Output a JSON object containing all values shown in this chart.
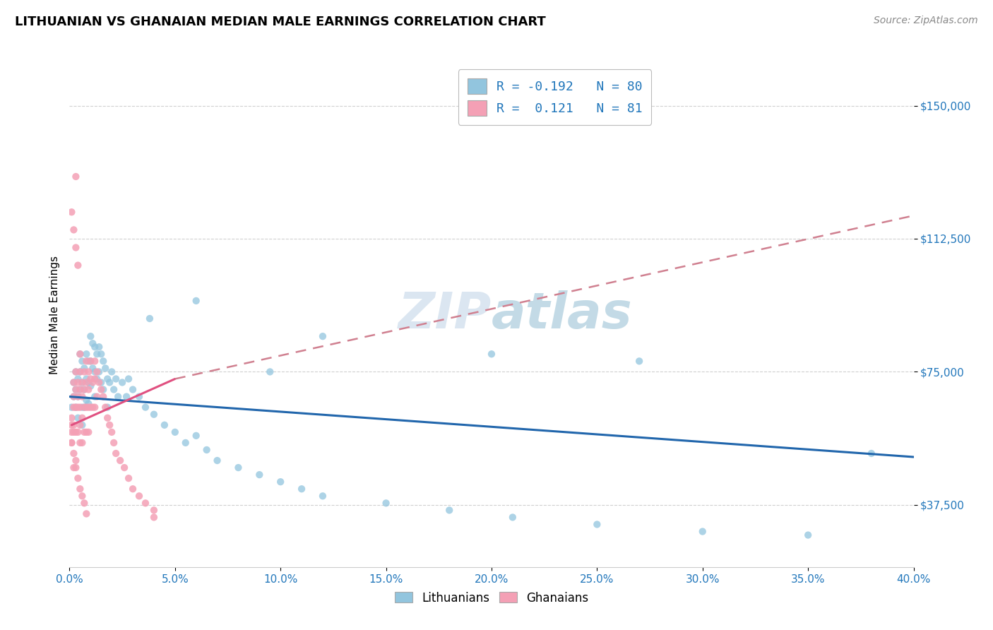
{
  "title": "LITHUANIAN VS GHANAIAN MEDIAN MALE EARNINGS CORRELATION CHART",
  "source": "Source: ZipAtlas.com",
  "ylabel": "Median Male Earnings",
  "yticks": [
    37500,
    75000,
    112500,
    150000
  ],
  "ytick_labels": [
    "$37,500",
    "$75,000",
    "$112,500",
    "$150,000"
  ],
  "xlim": [
    0.0,
    0.4
  ],
  "ylim": [
    20000,
    162000
  ],
  "watermark": "ZIPatlas",
  "color_blue": "#92c5de",
  "color_pink": "#f4a0b5",
  "trend_blue": "#2166ac",
  "trend_pink_solid": "#e05080",
  "trend_pink_dash": "#d08090",
  "background": "#ffffff",
  "grid_color": "#d0d0d0",
  "lith_trend_x0": 0.0,
  "lith_trend_y0": 68000,
  "lith_trend_x1": 0.4,
  "lith_trend_y1": 51000,
  "ghan_trend_solid_x0": 0.001,
  "ghan_trend_solid_y0": 60000,
  "ghan_trend_solid_x1": 0.05,
  "ghan_trend_solid_y1": 73000,
  "ghan_trend_dash_x0": 0.05,
  "ghan_trend_dash_y0": 73000,
  "ghan_trend_dash_x1": 0.4,
  "ghan_trend_dash_y1": 119000,
  "lithuanians_x": [
    0.001,
    0.002,
    0.002,
    0.003,
    0.003,
    0.003,
    0.004,
    0.004,
    0.004,
    0.005,
    0.005,
    0.005,
    0.006,
    0.006,
    0.006,
    0.006,
    0.007,
    0.007,
    0.007,
    0.008,
    0.008,
    0.008,
    0.009,
    0.009,
    0.009,
    0.01,
    0.01,
    0.01,
    0.011,
    0.011,
    0.012,
    0.012,
    0.012,
    0.013,
    0.013,
    0.014,
    0.014,
    0.015,
    0.015,
    0.016,
    0.016,
    0.017,
    0.018,
    0.018,
    0.019,
    0.02,
    0.021,
    0.022,
    0.023,
    0.025,
    0.027,
    0.028,
    0.03,
    0.033,
    0.036,
    0.04,
    0.045,
    0.05,
    0.055,
    0.06,
    0.065,
    0.07,
    0.08,
    0.09,
    0.1,
    0.11,
    0.12,
    0.15,
    0.18,
    0.21,
    0.25,
    0.3,
    0.35,
    0.038,
    0.12,
    0.2,
    0.27,
    0.38,
    0.06,
    0.095
  ],
  "lithuanians_y": [
    65000,
    72000,
    68000,
    75000,
    70000,
    65000,
    73000,
    68000,
    62000,
    80000,
    75000,
    70000,
    78000,
    72000,
    65000,
    60000,
    76000,
    70000,
    65000,
    80000,
    73000,
    67000,
    78000,
    72000,
    66000,
    85000,
    78000,
    71000,
    83000,
    76000,
    82000,
    75000,
    68000,
    80000,
    73000,
    82000,
    75000,
    80000,
    72000,
    78000,
    70000,
    76000,
    73000,
    65000,
    72000,
    75000,
    70000,
    73000,
    68000,
    72000,
    68000,
    73000,
    70000,
    68000,
    65000,
    63000,
    60000,
    58000,
    55000,
    57000,
    53000,
    50000,
    48000,
    46000,
    44000,
    42000,
    40000,
    38000,
    36000,
    34000,
    32000,
    30000,
    29000,
    90000,
    85000,
    80000,
    78000,
    52000,
    95000,
    75000
  ],
  "ghanaians_x": [
    0.001,
    0.001,
    0.001,
    0.002,
    0.002,
    0.002,
    0.002,
    0.003,
    0.003,
    0.003,
    0.003,
    0.003,
    0.004,
    0.004,
    0.004,
    0.004,
    0.005,
    0.005,
    0.005,
    0.005,
    0.005,
    0.005,
    0.006,
    0.006,
    0.006,
    0.006,
    0.007,
    0.007,
    0.007,
    0.007,
    0.008,
    0.008,
    0.008,
    0.008,
    0.009,
    0.009,
    0.009,
    0.009,
    0.01,
    0.01,
    0.01,
    0.011,
    0.011,
    0.012,
    0.012,
    0.012,
    0.013,
    0.013,
    0.014,
    0.015,
    0.016,
    0.017,
    0.018,
    0.019,
    0.02,
    0.021,
    0.022,
    0.024,
    0.026,
    0.028,
    0.03,
    0.033,
    0.036,
    0.04,
    0.001,
    0.002,
    0.003,
    0.004,
    0.003,
    0.004,
    0.005,
    0.006,
    0.007,
    0.008,
    0.002,
    0.003,
    0.002,
    0.001,
    0.002,
    0.001,
    0.04
  ],
  "ghanaians_y": [
    58000,
    62000,
    55000,
    68000,
    72000,
    65000,
    60000,
    75000,
    70000,
    65000,
    58000,
    130000,
    68000,
    72000,
    65000,
    58000,
    80000,
    75000,
    70000,
    65000,
    60000,
    55000,
    72000,
    68000,
    62000,
    55000,
    75000,
    70000,
    65000,
    58000,
    78000,
    72000,
    65000,
    58000,
    75000,
    70000,
    65000,
    58000,
    78000,
    73000,
    65000,
    72000,
    65000,
    78000,
    73000,
    65000,
    75000,
    68000,
    72000,
    70000,
    68000,
    65000,
    62000,
    60000,
    58000,
    55000,
    52000,
    50000,
    48000,
    45000,
    42000,
    40000,
    38000,
    36000,
    120000,
    115000,
    110000,
    105000,
    48000,
    45000,
    42000,
    40000,
    38000,
    35000,
    58000,
    50000,
    48000,
    55000,
    52000,
    60000,
    34000
  ]
}
